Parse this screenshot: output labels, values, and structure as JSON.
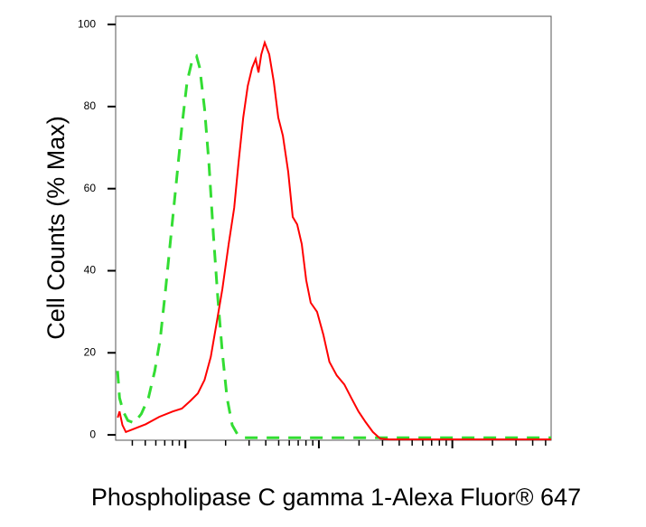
{
  "chart_data": {
    "type": "line",
    "ylabel": "Cell Counts (% Max)",
    "xlabel": "Phospholipase C gamma 1-Alexa Fluor® 647",
    "xscale": "log",
    "xlim": [
      3,
      5500
    ],
    "ylim": [
      -1.3,
      102
    ],
    "yticks": [
      0,
      20,
      40,
      60,
      80,
      100
    ],
    "xticks": [
      10,
      100,
      1000
    ],
    "xminorticks": [
      4,
      5,
      6,
      7,
      8,
      9,
      20,
      30,
      40,
      50,
      60,
      70,
      80,
      90,
      200,
      300,
      400,
      500,
      600,
      700,
      800,
      900,
      2000,
      3000,
      4000,
      5000
    ],
    "series": [
      {
        "color": "#33dd33",
        "style": "dashed",
        "x": [
          3.1,
          3.21,
          3.42,
          3.7,
          4.12,
          4.67,
          5.28,
          5.89,
          6.47,
          7.1,
          7.8,
          8.56,
          9.4,
          10.3,
          11.3,
          12.1,
          12.8,
          13.9,
          15.0,
          16.2,
          17.5,
          18.9,
          20.5,
          22.4,
          24.7,
          27.9,
          5500
        ],
        "values": [
          15.6,
          9.0,
          5.7,
          3.5,
          2.9,
          5.1,
          9.0,
          15.6,
          23.3,
          35.5,
          48.7,
          61.9,
          75.1,
          86.1,
          91.6,
          92.3,
          89.4,
          79.5,
          66.3,
          48.7,
          33.3,
          20.0,
          9.0,
          2.4,
          0,
          -0.7,
          -0.7
        ]
      },
      {
        "color": "#ff0000",
        "style": "solid",
        "x": [
          3.11,
          3.21,
          3.37,
          3.58,
          3.99,
          5.04,
          6.37,
          8.04,
          9.4,
          10.98,
          12.4,
          13.9,
          15.5,
          17.0,
          18.9,
          21.1,
          23.2,
          25.0,
          27.1,
          29.3,
          31.6,
          33.6,
          35.3,
          37.0,
          39.3,
          42.5,
          45.9,
          49.6,
          53.7,
          58.9,
          63.7,
          68.8,
          74.4,
          80.4,
          86.9,
          96.9,
          108,
          120,
          136,
          155,
          175,
          198,
          224,
          254,
          288,
          336,
          5500
        ],
        "values": [
          4.2,
          5.7,
          2.4,
          0.7,
          1.3,
          2.6,
          4.4,
          5.7,
          6.4,
          8.4,
          10.1,
          13.4,
          19.0,
          26.7,
          35.5,
          46.5,
          55.3,
          66.3,
          77.3,
          85.0,
          89.4,
          91.6,
          88.3,
          92.7,
          95.6,
          92.7,
          86.1,
          77.3,
          72.9,
          64.1,
          53.1,
          51.3,
          46.5,
          37.7,
          32.2,
          30.0,
          24.4,
          17.8,
          14.5,
          12.3,
          9.0,
          5.7,
          3.1,
          0.7,
          -0.9,
          -1.1,
          -1.1
        ]
      }
    ]
  }
}
